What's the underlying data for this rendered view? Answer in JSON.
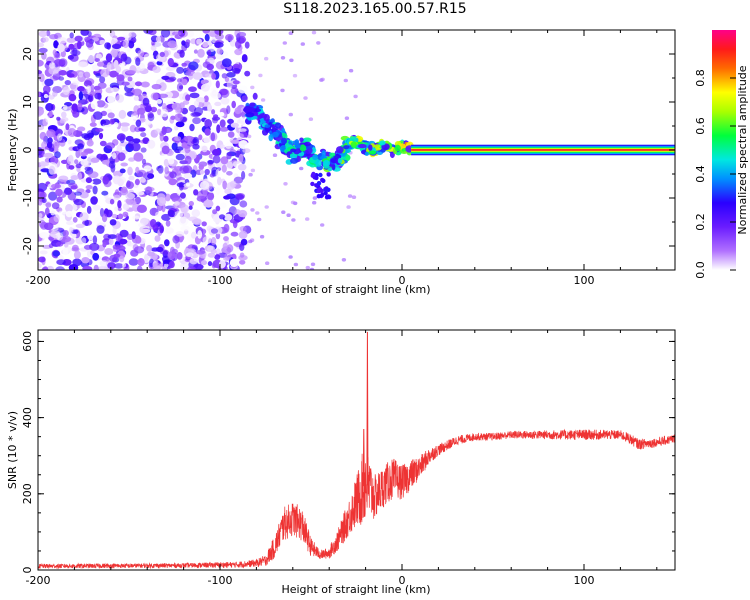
{
  "title": "S118.2023.165.00.57.R15",
  "chart_data": [
    {
      "type": "heatmap",
      "xlabel": "Height of straight line (km)",
      "ylabel": "Frequency (Hz)",
      "xlim": [
        -200,
        150
      ],
      "ylim": [
        -25,
        25
      ],
      "xticks": [
        -200,
        -100,
        0,
        100
      ],
      "yticks": [
        -20,
        -10,
        0,
        10,
        20
      ],
      "grid": false,
      "colorbar": {
        "label": "Normalized spectral amplitude",
        "range": [
          0.0,
          1.0
        ],
        "ticks": [
          0.0,
          0.2,
          0.4,
          0.6,
          0.8
        ],
        "tick_labels": [
          "0.0",
          "0.2",
          "0.4",
          "0.6",
          "0.8"
        ],
        "colors": [
          "#ffffff",
          "#a64dff",
          "#3300ff",
          "#00e0ff",
          "#00ff33",
          "#ffff00",
          "#ff2a00",
          "#ff0080"
        ]
      },
      "features": {
        "noise_region_x": [
          -200,
          -85
        ],
        "noise_amplitude": [
          0.0,
          0.3
        ],
        "transition_track": [
          {
            "x": -85,
            "y": 8
          },
          {
            "x": -80,
            "y": 8.5
          },
          {
            "x": -75,
            "y": 5
          },
          {
            "x": -70,
            "y": 4
          },
          {
            "x": -65,
            "y": 1.5
          },
          {
            "x": -60,
            "y": -1
          },
          {
            "x": -55,
            "y": 1
          },
          {
            "x": -50,
            "y": -1
          },
          {
            "x": -45,
            "y": -2
          },
          {
            "x": -40,
            "y": -2.5
          },
          {
            "x": -35,
            "y": -2
          },
          {
            "x": -30,
            "y": 0.5
          },
          {
            "x": -25,
            "y": 2
          },
          {
            "x": -20,
            "y": 0.5
          },
          {
            "x": -15,
            "y": 0
          },
          {
            "x": -10,
            "y": 1
          },
          {
            "x": -5,
            "y": 0
          },
          {
            "x": 0,
            "y": 1
          },
          {
            "x": 5,
            "y": 0
          }
        ],
        "carrier_line": {
          "x_start": 5,
          "x_end": 150,
          "y": 0,
          "amplitude": 1.0
        }
      }
    },
    {
      "type": "line",
      "xlabel": "Height of straight line (km)",
      "ylabel": "SNR (10 * v/v)",
      "xlim": [
        -200,
        150
      ],
      "ylim": [
        0,
        630
      ],
      "xticks": [
        -200,
        -100,
        0,
        100
      ],
      "yticks": [
        0,
        200,
        400,
        600
      ],
      "color": "#ee3333",
      "envelope": {
        "x": [
          -200,
          -120,
          -90,
          -80,
          -75,
          -70,
          -65,
          -60,
          -55,
          -50,
          -45,
          -40,
          -35,
          -30,
          -25,
          -20,
          -15,
          -10,
          -5,
          0,
          5,
          10,
          15,
          20,
          30,
          40,
          50,
          60,
          80,
          100,
          120,
          125,
          130,
          140,
          150
        ],
        "mean": [
          10,
          12,
          14,
          18,
          25,
          60,
          120,
          135,
          120,
          60,
          40,
          45,
          80,
          130,
          180,
          230,
          190,
          220,
          240,
          230,
          250,
          270,
          300,
          315,
          340,
          350,
          350,
          355,
          355,
          355,
          355,
          345,
          330,
          335,
          345
        ],
        "spread": [
          6,
          6,
          8,
          10,
          15,
          30,
          45,
          45,
          45,
          25,
          12,
          15,
          30,
          45,
          70,
          110,
          60,
          55,
          55,
          45,
          40,
          30,
          22,
          15,
          12,
          10,
          10,
          10,
          12,
          14,
          12,
          14,
          14,
          12,
          12
        ]
      },
      "spikes": [
        {
          "x": -19,
          "y": 625
        },
        {
          "x": -21,
          "y": 370
        }
      ]
    }
  ]
}
